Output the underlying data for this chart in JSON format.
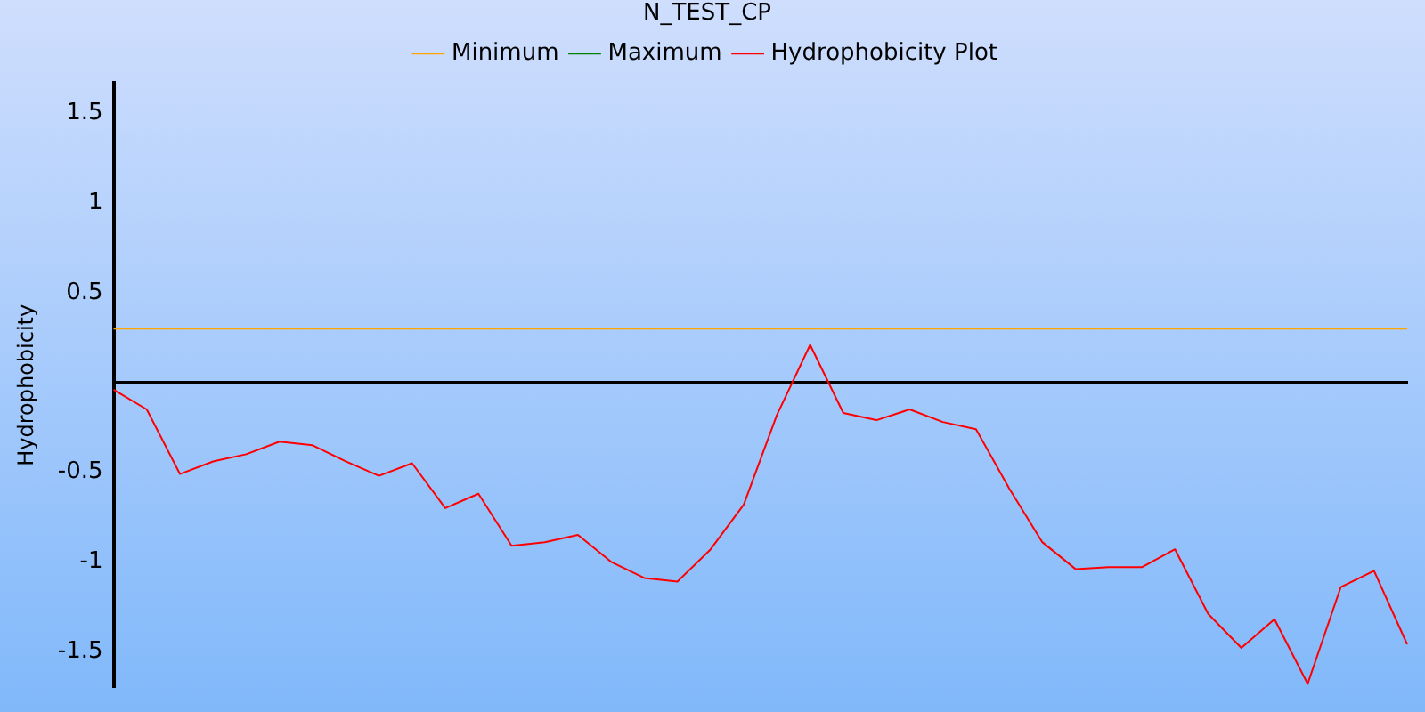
{
  "chart_data": {
    "type": "line",
    "title": "N_TEST_CP",
    "ylabel": "Hydrophobicity",
    "categories": [
      null,
      null,
      null,
      null,
      null,
      null,
      null,
      null,
      null,
      null,
      null,
      null,
      null,
      null,
      null,
      null,
      null,
      null,
      null,
      null,
      null,
      null,
      null,
      null,
      null,
      null,
      null,
      null,
      null,
      null,
      null,
      null,
      null,
      null,
      null,
      null,
      null,
      null,
      null,
      null
    ],
    "series": [
      {
        "name": "Minimum",
        "color": "#ffa500",
        "values": [
          0.3,
          0.3,
          0.3,
          0.3,
          0.3,
          0.3,
          0.3,
          0.3,
          0.3,
          0.3,
          0.3,
          0.3,
          0.3,
          0.3,
          0.3,
          0.3,
          0.3,
          0.3,
          0.3,
          0.3,
          0.3,
          0.3,
          0.3,
          0.3,
          0.3,
          0.3,
          0.3,
          0.3,
          0.3,
          0.3,
          0.3,
          0.3,
          0.3,
          0.3,
          0.3,
          0.3,
          0.3,
          0.3,
          0.3,
          0.3
        ]
      },
      {
        "name": "Maximum",
        "color": "#008000",
        "values": [
          null,
          null,
          null,
          null,
          null,
          null,
          null,
          null,
          null,
          null,
          null,
          null,
          null,
          null,
          null,
          null,
          null,
          null,
          null,
          null,
          null,
          null,
          null,
          null,
          null,
          null,
          null,
          null,
          null,
          null,
          null,
          null,
          null,
          null,
          null,
          null,
          null,
          null,
          null,
          null
        ]
      },
      {
        "name": "Hydrophobicity Plot",
        "color": "#ff0000",
        "values": [
          -0.04,
          -0.15,
          -0.51,
          -0.44,
          -0.4,
          -0.33,
          -0.35,
          -0.44,
          -0.52,
          -0.45,
          -0.7,
          -0.62,
          -0.91,
          -0.89,
          -0.85,
          -1.0,
          -1.09,
          -1.11,
          -0.93,
          -0.68,
          -0.18,
          0.21,
          -0.17,
          -0.21,
          -0.15,
          -0.22,
          -0.26,
          -0.59,
          -0.89,
          -1.04,
          -1.03,
          -1.03,
          -0.93,
          -1.29,
          -1.48,
          -1.32,
          -1.68,
          -1.14,
          -1.05,
          -1.46
        ]
      }
    ],
    "ylim": [
      -1.7,
      1.67
    ],
    "yticks": [
      1.5,
      1,
      0.5,
      -0.5,
      -1,
      -1.5
    ],
    "grid": false,
    "legend": "top",
    "marker": "none",
    "line_style": "solid",
    "tick_labels": "y"
  }
}
